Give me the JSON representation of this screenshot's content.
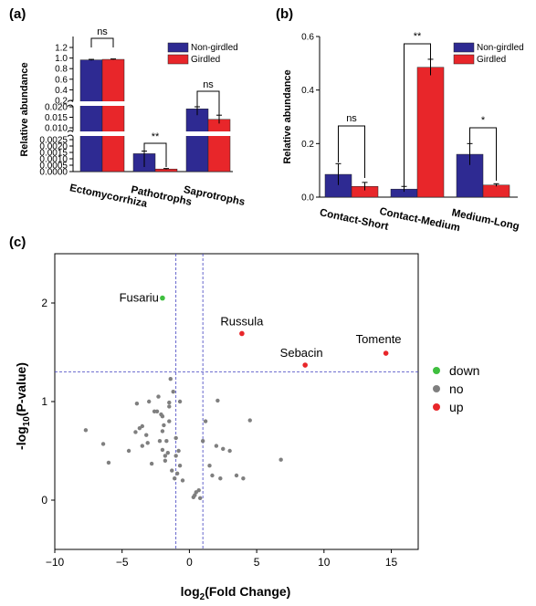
{
  "panels": {
    "a": "(a)",
    "b": "(b)",
    "c": "(c)"
  },
  "colors": {
    "non_girdled": "#2e2a92",
    "girdled": "#e8262a",
    "down": "#3fbf3f",
    "no": "#7f7f7f",
    "up": "#e8262a",
    "ref_lines": "#4040c0"
  },
  "chart_data": [
    {
      "type": "bar",
      "panel": "(a)",
      "ylabel": "Relative abundance",
      "categories": [
        "Ectomycorrhiza",
        "Pathotrophs",
        "Saprotrophs"
      ],
      "series": [
        {
          "name": "Non-girdled",
          "values": [
            0.965,
            0.0014,
            0.019
          ],
          "errors": [
            0.01,
            0.0002,
            0.003
          ]
        },
        {
          "name": "Girdled",
          "values": [
            0.975,
            0.0002,
            0.014
          ],
          "errors": [
            0.008,
            4e-05,
            0.002
          ]
        }
      ],
      "significance": [
        "ns",
        "**",
        "ns"
      ],
      "y_axis_break": true,
      "y_segments": [
        {
          "ylim": [
            0,
            0.0025
          ],
          "ticks": [
            "0.0000",
            "0.0005",
            "0.0010",
            "0.0015",
            "0.0020",
            "0.0025"
          ]
        },
        {
          "ylim": [
            0.01,
            0.02
          ],
          "ticks": [
            "0.010",
            "0.015",
            "0.020"
          ]
        },
        {
          "ylim": [
            0.2,
            1.2
          ],
          "ticks": [
            "0.2",
            "0.4",
            "0.6",
            "0.8",
            "1.0",
            "1.2"
          ]
        }
      ],
      "legend": "top-right"
    },
    {
      "type": "bar",
      "panel": "(b)",
      "ylabel": "Relative abundance",
      "categories": [
        "Contact-Short",
        "Contact-Medium",
        "Medium-Long"
      ],
      "series": [
        {
          "name": "Non-girdled",
          "values": [
            0.085,
            0.03,
            0.16
          ],
          "errors": [
            0.04,
            0.01,
            0.04
          ]
        },
        {
          "name": "Girdled",
          "values": [
            0.04,
            0.485,
            0.045
          ],
          "errors": [
            0.015,
            0.03,
            0.005
          ]
        }
      ],
      "significance": [
        "ns",
        "**",
        "*"
      ],
      "ylim": [
        0,
        0.6
      ],
      "yticks": [
        "0.0",
        "0.2",
        "0.4",
        "0.6"
      ],
      "legend": "top-right"
    },
    {
      "type": "scatter",
      "panel": "(c)",
      "xlabel": "log",
      "xlabel_sub": "2",
      "xlabel_rest": "(Fold Change)",
      "ylabel": "-log",
      "ylabel_sub": "10",
      "ylabel_rest": "(P-value)",
      "xlim": [
        -10,
        17
      ],
      "ylim": [
        -0.5,
        2.5
      ],
      "xticks": [
        "-10",
        "-5",
        "0",
        "5",
        "10",
        "15"
      ],
      "yticks": [
        "0",
        "1",
        "2"
      ],
      "vlines": [
        -1,
        1
      ],
      "hline": 1.3,
      "legend": "right",
      "series": [
        {
          "name": "down",
          "points": [
            [
              -2,
              2.05
            ]
          ]
        },
        {
          "name": "no",
          "points": [
            [
              -7.7,
              0.71
            ],
            [
              -6.4,
              0.57
            ],
            [
              -6.0,
              0.38
            ],
            [
              -4.5,
              0.5
            ],
            [
              -4.0,
              0.69
            ],
            [
              -3.9,
              0.98
            ],
            [
              -3.7,
              0.73
            ],
            [
              -3.5,
              0.75
            ],
            [
              -3.5,
              0.55
            ],
            [
              -3.2,
              0.66
            ],
            [
              -3.1,
              0.58
            ],
            [
              -3.0,
              1.0
            ],
            [
              -2.8,
              0.37
            ],
            [
              -2.6,
              0.9
            ],
            [
              -2.4,
              0.9
            ],
            [
              -2.3,
              1.05
            ],
            [
              -2.2,
              0.6
            ],
            [
              -2.1,
              0.87
            ],
            [
              -2.0,
              0.85
            ],
            [
              -2.0,
              0.7
            ],
            [
              -2.0,
              0.51
            ],
            [
              -1.9,
              0.76
            ],
            [
              -1.8,
              0.45
            ],
            [
              -1.8,
              0.4
            ],
            [
              -1.7,
              0.6
            ],
            [
              -1.6,
              0.48
            ],
            [
              -1.5,
              0.95
            ],
            [
              -1.5,
              0.8
            ],
            [
              -1.4,
              1.23
            ],
            [
              -1.3,
              0.3
            ],
            [
              -1.2,
              1.1
            ],
            [
              -1.1,
              0.22
            ],
            [
              -1.0,
              0.63
            ],
            [
              -1.0,
              0.45
            ],
            [
              -0.9,
              0.27
            ],
            [
              -0.8,
              0.5
            ],
            [
              -0.7,
              0.35
            ],
            [
              -0.5,
              0.2
            ],
            [
              0.3,
              0.03
            ],
            [
              0.4,
              0.05
            ],
            [
              0.5,
              0.08
            ],
            [
              0.7,
              0.1
            ],
            [
              0.8,
              0.02
            ],
            [
              1.0,
              0.6
            ],
            [
              1.2,
              0.8
            ],
            [
              1.5,
              0.35
            ],
            [
              1.7,
              0.25
            ],
            [
              2.0,
              0.55
            ],
            [
              2.3,
              0.22
            ],
            [
              2.5,
              0.52
            ],
            [
              3.0,
              0.5
            ],
            [
              3.5,
              0.25
            ],
            [
              4.0,
              0.22
            ],
            [
              4.5,
              0.81
            ],
            [
              2.1,
              1.01
            ],
            [
              6.8,
              0.41
            ],
            [
              -0.7,
              1.0
            ],
            [
              -1.5,
              0.99
            ]
          ]
        },
        {
          "name": "up",
          "points": [
            [
              3.9,
              1.69
            ],
            [
              8.6,
              1.37
            ],
            [
              14.6,
              1.49
            ]
          ]
        }
      ],
      "annotations": [
        {
          "text": "Fusariu",
          "x": -2,
          "y": 2.05
        },
        {
          "text": "Russula",
          "x": 3.9,
          "y": 1.69
        },
        {
          "text": "Sebacin",
          "x": 8.6,
          "y": 1.37
        },
        {
          "text": "Tomente",
          "x": 14.6,
          "y": 1.49
        }
      ]
    }
  ]
}
